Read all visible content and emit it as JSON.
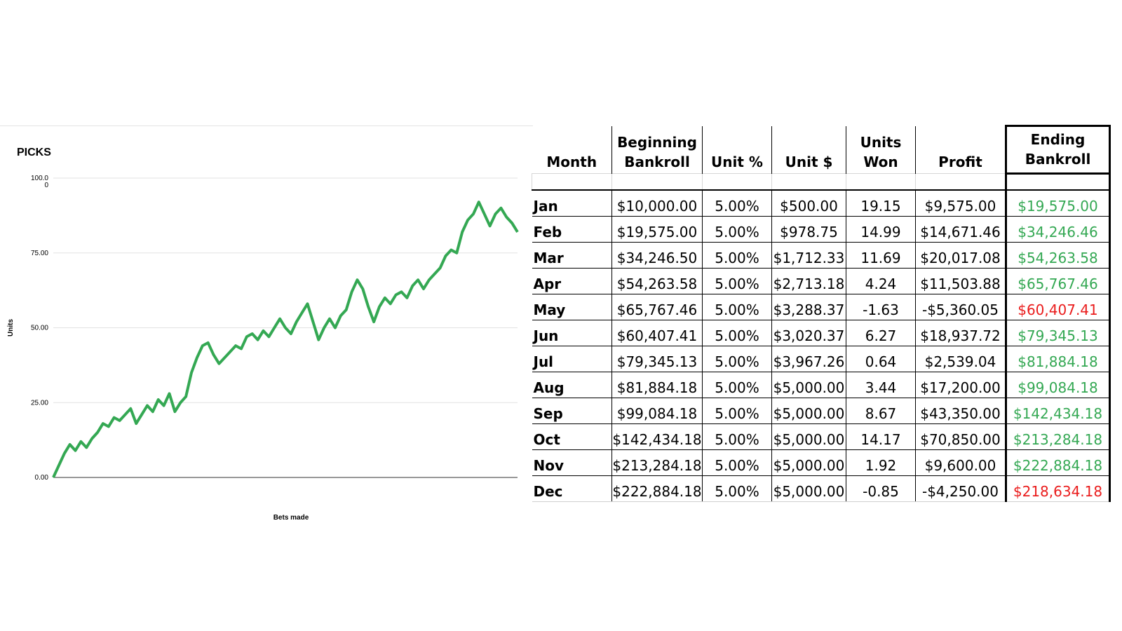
{
  "chart_data": {
    "type": "line",
    "title": "PICKS",
    "xlabel": "Bets made",
    "ylabel": "Units",
    "yticks": [
      "0.00",
      "25.00",
      "50.00",
      "75.00",
      "100.0\n0"
    ],
    "ylim": [
      0,
      100
    ],
    "grid": true,
    "line_color": "#34a853",
    "series": [
      {
        "values": [
          0,
          4,
          8,
          11,
          9,
          12,
          10,
          13,
          15,
          18,
          17,
          20,
          19,
          21,
          23,
          18,
          21,
          24,
          22,
          26,
          24,
          28,
          22,
          25,
          27,
          35,
          40,
          44,
          45,
          41,
          38,
          40,
          42,
          44,
          43,
          47,
          48,
          46,
          49,
          47,
          50,
          53,
          50,
          48,
          52,
          55,
          58,
          52,
          46,
          50,
          53,
          50,
          54,
          56,
          62,
          66,
          63,
          57,
          52,
          57,
          60,
          58,
          61,
          62,
          60,
          64,
          66,
          63,
          66,
          68,
          70,
          74,
          76,
          75,
          82,
          86,
          88,
          92,
          88,
          84,
          88,
          90,
          87,
          85,
          82
        ]
      }
    ]
  },
  "table": {
    "headers": [
      "Month",
      "Beginning Bankroll",
      "Unit %",
      "Unit $",
      "Units Won",
      "Profit",
      "Ending Bankroll"
    ],
    "rows": [
      [
        "Jan",
        "$10,000.00",
        "5.00%",
        "$500.00",
        "19.15",
        "$9,575.00",
        "$19,575.00"
      ],
      [
        "Feb",
        "$19,575.00",
        "5.00%",
        "$978.75",
        "14.99",
        "$14,671.46",
        "$34,246.46"
      ],
      [
        "Mar",
        "$34,246.50",
        "5.00%",
        "$1,712.33",
        "11.69",
        "$20,017.08",
        "$54,263.58"
      ],
      [
        "Apr",
        "$54,263.58",
        "5.00%",
        "$2,713.18",
        "4.24",
        "$11,503.88",
        "$65,767.46"
      ],
      [
        "May",
        "$65,767.46",
        "5.00%",
        "$3,288.37",
        "-1.63",
        "-$5,360.05",
        "$60,407.41"
      ],
      [
        "Jun",
        "$60,407.41",
        "5.00%",
        "$3,020.37",
        "6.27",
        "$18,937.72",
        "$79,345.13"
      ],
      [
        "Jul",
        "$79,345.13",
        "5.00%",
        "$3,967.26",
        "0.64",
        "$2,539.04",
        "$81,884.18"
      ],
      [
        "Aug",
        "$81,884.18",
        "5.00%",
        "$5,000.00",
        "3.44",
        "$17,200.00",
        "$99,084.18"
      ],
      [
        "Sep",
        "$99,084.18",
        "5.00%",
        "$5,000.00",
        "8.67",
        "$43,350.00",
        "$142,434.18"
      ],
      [
        "Oct",
        "$142,434.18",
        "5.00%",
        "$5,000.00",
        "14.17",
        "$70,850.00",
        "$213,284.18"
      ],
      [
        "Nov",
        "$213,284.18",
        "5.00%",
        "$5,000.00",
        "1.92",
        "$9,600.00",
        "$222,884.18"
      ],
      [
        "Dec",
        "$222,884.18",
        "5.00%",
        "$5,000.00",
        "-0.85",
        "-$4,250.00",
        "$218,634.18"
      ]
    ],
    "ending_status": [
      "pos",
      "pos",
      "pos",
      "pos",
      "neg",
      "pos",
      "pos",
      "pos",
      "pos",
      "pos",
      "pos",
      "neg"
    ],
    "colors": {
      "gain": "#34a853",
      "loss": "#ea1c1c"
    }
  }
}
